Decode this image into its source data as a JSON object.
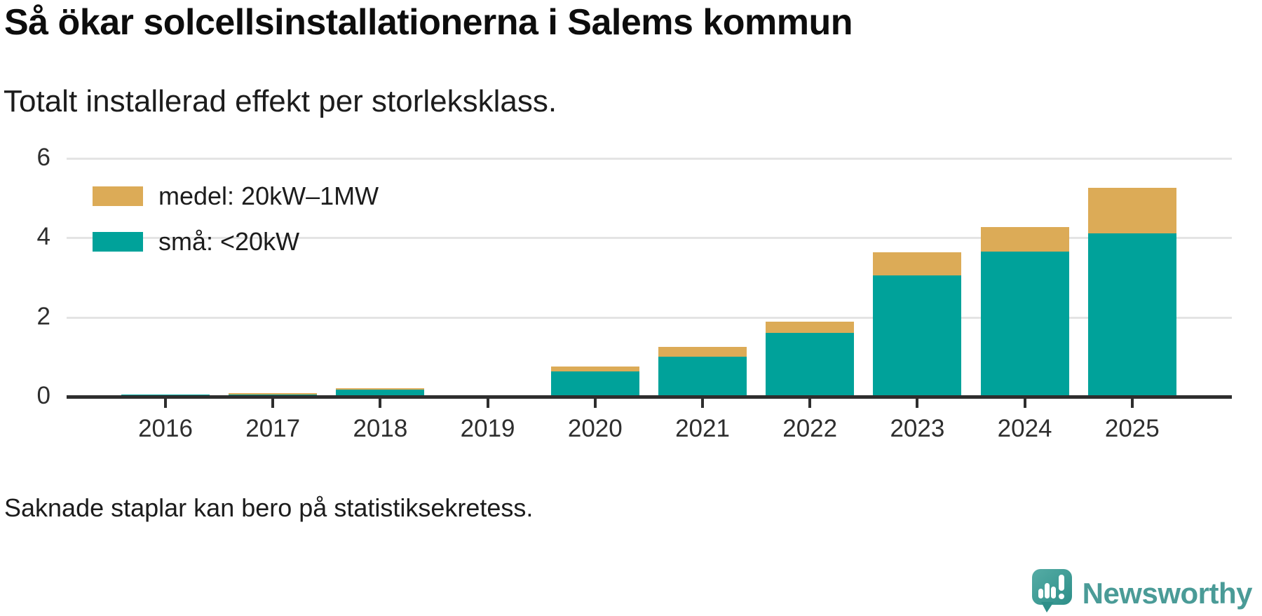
{
  "header": {
    "title": "Så ökar solcellsinstallationerna i Salems kommun",
    "subtitle": "Totalt installerad effekt per storleksklass."
  },
  "chart_data": {
    "type": "bar",
    "stacked": true,
    "title": "Så ökar solcellsinstallationerna i Salems kommun",
    "subtitle": "Totalt installerad effekt per storleksklass.",
    "categories": [
      "2016",
      "2017",
      "2018",
      "2019",
      "2020",
      "2021",
      "2022",
      "2023",
      "2024",
      "2025"
    ],
    "series": [
      {
        "name": "små: <20kW",
        "color": "#00a29a",
        "values": [
          0.06,
          0.05,
          0.17,
          null,
          0.63,
          1.0,
          1.6,
          3.05,
          3.65,
          4.12
        ]
      },
      {
        "name": "medel: 20kW–1MW",
        "color": "#dcab57",
        "values": [
          0,
          0.04,
          0.05,
          null,
          0.13,
          0.26,
          0.28,
          0.58,
          0.62,
          1.14
        ]
      }
    ],
    "missing_categories": [
      "2019"
    ],
    "ylim": [
      0,
      6
    ],
    "yticks": [
      0,
      2,
      4,
      6
    ],
    "grid": true,
    "legend_position": "top-left",
    "note": "Saknade staplar kan bero på statistiksekretess."
  },
  "legend": {
    "items": [
      {
        "label": "medel: 20kW–1MW",
        "color": "#dcab57"
      },
      {
        "label": "små: <20kW",
        "color": "#00a29a"
      }
    ]
  },
  "footer": {
    "note": "Saknade staplar kan bero på statistiksekretess.",
    "brand": "Newsworthy"
  },
  "colors": {
    "small_series": "#00a29a",
    "medium_series": "#dcab57",
    "gridline": "#e4e4e4",
    "axis": "#2e2e2e",
    "logo": "#4a9b97"
  }
}
